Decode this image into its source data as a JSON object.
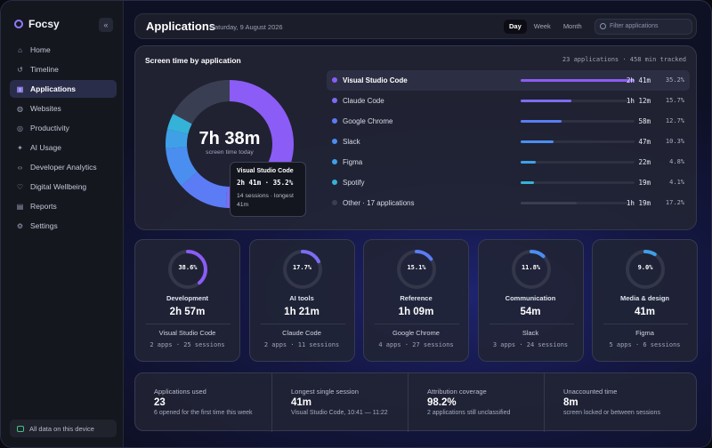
{
  "app": {
    "name": "Focsy",
    "collapse_icon": "«"
  },
  "sidebar": {
    "items": [
      {
        "label": "Home",
        "icon": "home-icon",
        "active": false
      },
      {
        "label": "Timeline",
        "icon": "history-icon",
        "active": false
      },
      {
        "label": "Applications",
        "icon": "window-icon",
        "active": true
      },
      {
        "label": "Websites",
        "icon": "globe-icon",
        "active": false
      },
      {
        "label": "Productivity",
        "icon": "target-icon",
        "active": false
      },
      {
        "label": "AI Usage",
        "icon": "sparkle-icon",
        "active": false
      },
      {
        "label": "Developer Analytics",
        "icon": "code-icon",
        "active": false
      },
      {
        "label": "Digital Wellbeing",
        "icon": "heart-icon",
        "active": false
      },
      {
        "label": "Reports",
        "icon": "document-icon",
        "active": false
      },
      {
        "label": "Settings",
        "icon": "gear-icon",
        "active": false
      }
    ],
    "device_note": "All data on this device"
  },
  "header": {
    "title": "Applications",
    "date": "Saturday, 9 August 2026",
    "ranges": [
      {
        "label": "Day",
        "active": true
      },
      {
        "label": "Week",
        "active": false
      },
      {
        "label": "Month",
        "active": false
      }
    ],
    "filter_placeholder": "Filter applications"
  },
  "screen_time": {
    "title": "Screen time by application",
    "meta": "23 applications · 458 min tracked",
    "total": "7h 38m",
    "total_label": "screen time today",
    "tooltip": {
      "name": "Visual Studio Code",
      "value": "2h 41m · 35.2%",
      "sessions": "14 sessions · longest 41m"
    }
  },
  "apps": [
    {
      "name": "Visual Studio Code",
      "time": "2h 41m",
      "pct": "35.2%",
      "share": 35.2,
      "color": "#8b5cf6",
      "active": true
    },
    {
      "name": "Claude Code",
      "time": "1h 12m",
      "pct": "15.7%",
      "share": 15.7,
      "color": "#7c6cf2",
      "active": false
    },
    {
      "name": "Google Chrome",
      "time": "58m",
      "pct": "12.7%",
      "share": 12.7,
      "color": "#5b7cf5",
      "active": false
    },
    {
      "name": "Slack",
      "time": "47m",
      "pct": "10.3%",
      "share": 10.3,
      "color": "#4a8ef0",
      "active": false
    },
    {
      "name": "Figma",
      "time": "22m",
      "pct": "4.8%",
      "share": 4.8,
      "color": "#3fa0e8",
      "active": false
    },
    {
      "name": "Spotify",
      "time": "19m",
      "pct": "4.1%",
      "share": 4.1,
      "color": "#35b2d8",
      "active": false
    },
    {
      "name": "Other · 17 applications",
      "time": "1h 19m",
      "pct": "17.2%",
      "share": 17.2,
      "color": "#3a3e52",
      "active": false
    }
  ],
  "categories": [
    {
      "name": "Development",
      "time": "2h 57m",
      "pct": "38.6%",
      "share": 38.6,
      "top": "Visual Studio Code",
      "meta": "2 apps · 25 sessions",
      "color": "#8b5cf6"
    },
    {
      "name": "AI tools",
      "time": "1h 21m",
      "pct": "17.7%",
      "share": 17.7,
      "top": "Claude Code",
      "meta": "2 apps · 11 sessions",
      "color": "#7c6cf2"
    },
    {
      "name": "Reference",
      "time": "1h 09m",
      "pct": "15.1%",
      "share": 15.1,
      "top": "Google Chrome",
      "meta": "4 apps · 27 sessions",
      "color": "#5b7cf5"
    },
    {
      "name": "Communication",
      "time": "54m",
      "pct": "11.8%",
      "share": 11.8,
      "top": "Slack",
      "meta": "3 apps · 24 sessions",
      "color": "#4a8ef0"
    },
    {
      "name": "Media & design",
      "time": "41m",
      "pct": "9.0%",
      "share": 9.0,
      "top": "Figma",
      "meta": "5 apps · 6 sessions",
      "color": "#3fa0e8"
    }
  ],
  "stats": [
    {
      "label": "Applications used",
      "value": "23",
      "note": "6 opened for the first time this week"
    },
    {
      "label": "Longest single session",
      "value": "41m",
      "note": "Visual Studio Code, 10:41 — 11:22"
    },
    {
      "label": "Attribution coverage",
      "value": "98.2%",
      "note": "2 applications still unclassified"
    },
    {
      "label": "Unaccounted time",
      "value": "8m",
      "note": "screen locked or between sessions"
    }
  ]
}
